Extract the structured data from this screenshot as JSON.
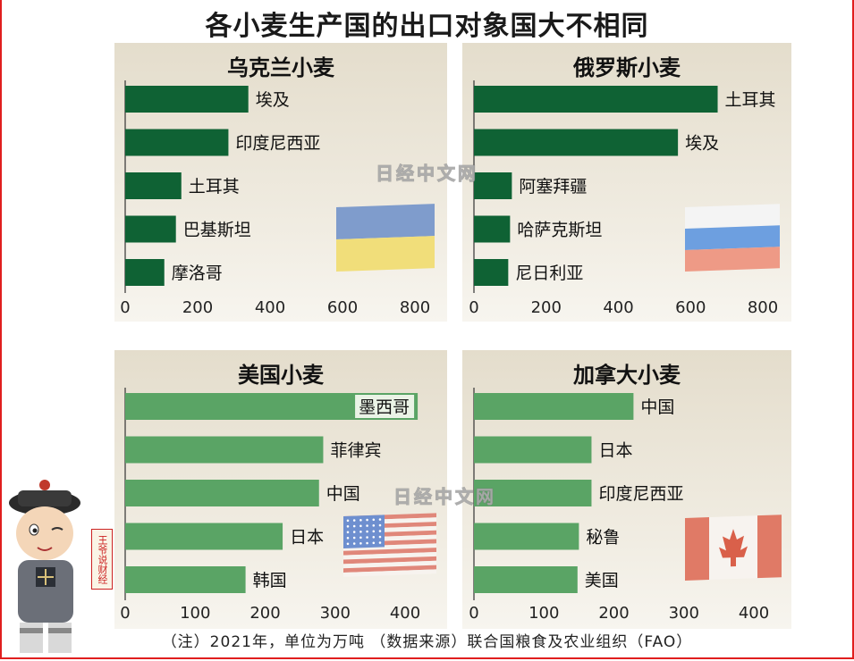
{
  "main_title": "各小麦生产国的出口对象国大不相同",
  "footnote": "（注）2021年，单位为万吨 （数据来源）联合国粮食及农业组织（FAO）",
  "watermark": "日经中文网",
  "tag_text": "王爷说财经",
  "colors": {
    "bar_dark": "#0f6234",
    "bar_light": "#5aa465",
    "accent_border": "#e01e1e"
  },
  "chart_data": [
    {
      "type": "bar",
      "title": "乌克兰小麦",
      "categories": [
        "埃及",
        "印度尼西亚",
        "土耳其",
        "巴基斯坦",
        "摩洛哥"
      ],
      "values": [
        340,
        285,
        155,
        140,
        108
      ],
      "xlim": [
        0,
        800
      ],
      "xticks": [
        "0",
        "200",
        "400",
        "600",
        "800"
      ],
      "flag": "ukraine-flag"
    },
    {
      "type": "bar",
      "title": "俄罗斯小麦",
      "categories": [
        "土耳其",
        "埃及",
        "阿塞拜疆",
        "哈萨克斯坦",
        "尼日利亚"
      ],
      "values": [
        675,
        565,
        105,
        100,
        95
      ],
      "xlim": [
        0,
        800
      ],
      "xticks": [
        "0",
        "200",
        "400",
        "600",
        "800"
      ],
      "flag": "russia-flag"
    },
    {
      "type": "bar",
      "title": "美国小麦",
      "categories": [
        "墨西哥",
        "菲律宾",
        "中国",
        "日本",
        "韩国"
      ],
      "values": [
        418,
        283,
        277,
        225,
        172
      ],
      "xlim": [
        0,
        400
      ],
      "xticks": [
        "0",
        "100",
        "200",
        "300",
        "400"
      ],
      "flag": "usa-flag"
    },
    {
      "type": "bar",
      "title": "加拿大小麦",
      "categories": [
        "中国",
        "日本",
        "印度尼西亚",
        "秘鲁",
        "美国"
      ],
      "values": [
        228,
        168,
        168,
        150,
        148
      ],
      "xlim": [
        0,
        400
      ],
      "xticks": [
        "0",
        "100",
        "200",
        "300",
        "400"
      ],
      "flag": "canada-flag"
    }
  ]
}
